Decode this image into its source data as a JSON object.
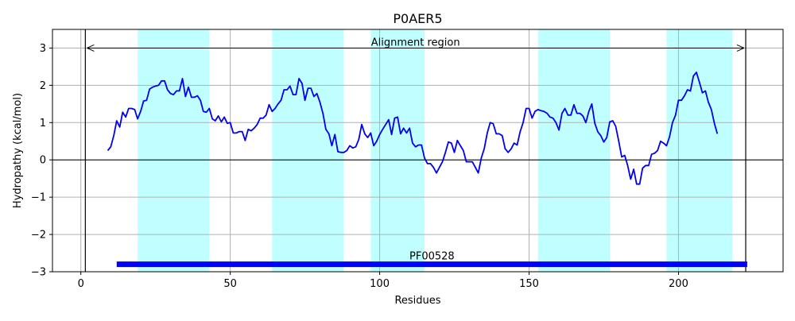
{
  "chart_data": {
    "type": "line",
    "title": "P0AER5",
    "xlabel": "Residues",
    "ylabel": "Hydropathy (kcal/mol)",
    "xlim": [
      -9.5,
      235
    ],
    "ylim": [
      -3,
      3.5
    ],
    "xticks": [
      0,
      50,
      100,
      150,
      200
    ],
    "yticks": [
      -3,
      -2,
      -1,
      0,
      1,
      2,
      3
    ],
    "xtick_labels": [
      "0",
      "50",
      "100",
      "150",
      "200"
    ],
    "ytick_labels": [
      "−3",
      "−2",
      "−1",
      "0",
      "1",
      "2",
      "3"
    ],
    "grid": true,
    "colors": {
      "line": "#0000ee",
      "span": "#c0ffff",
      "domain_bar": "#0000ff",
      "axis": "#000000",
      "grid": "#b0b0b0"
    },
    "highlight_spans": [
      [
        19,
        43
      ],
      [
        64,
        88
      ],
      [
        97,
        115
      ],
      [
        153,
        177
      ],
      [
        196,
        218
      ]
    ],
    "alignment_region": {
      "label": "Alignment region",
      "start": 1.5,
      "end": 222.5,
      "y": 3.0
    },
    "domain": {
      "label": "PF00528",
      "start": 12,
      "end": 223,
      "y": -2.8
    },
    "series": [
      {
        "x": [
          9,
          10,
          11,
          12,
          13,
          14,
          15,
          16,
          17,
          18,
          19,
          20,
          21,
          22,
          23,
          24,
          25,
          26,
          27,
          28,
          29,
          30,
          31,
          32,
          33,
          34,
          35,
          36,
          37,
          38,
          39,
          40,
          41,
          42,
          43,
          44,
          45,
          46,
          47,
          48,
          49,
          50,
          51,
          52,
          53,
          54,
          55,
          56,
          57,
          58,
          59,
          60,
          61,
          62,
          63,
          64,
          65,
          66,
          67,
          68,
          69,
          70,
          71,
          72,
          73,
          74,
          75,
          76,
          77,
          78,
          79,
          80,
          81,
          82,
          83,
          84,
          85,
          86,
          87,
          88,
          89,
          90,
          91,
          92,
          93,
          94,
          95,
          96,
          97,
          98,
          99,
          100,
          101,
          102,
          103,
          104,
          105,
          106,
          107,
          108,
          109,
          110,
          111,
          112,
          113,
          114,
          115,
          116,
          117,
          118,
          119,
          120,
          121,
          122,
          123,
          124,
          125,
          126,
          127,
          128,
          129,
          130,
          131,
          132,
          133,
          134,
          135,
          136,
          137,
          138,
          139,
          140,
          141,
          142,
          143,
          144,
          145,
          146,
          147,
          148,
          149,
          150,
          151,
          152,
          153,
          154,
          155,
          156,
          157,
          158,
          159,
          160,
          161,
          162,
          163,
          164,
          165,
          166,
          167,
          168,
          169,
          170,
          171,
          172,
          173,
          174,
          175,
          176,
          177,
          178,
          179,
          180,
          181,
          182,
          183,
          184,
          185,
          186,
          187,
          188,
          189,
          190,
          191,
          192,
          193,
          194,
          195,
          196,
          197,
          198,
          199,
          200,
          201,
          202,
          203,
          204,
          205,
          206,
          207,
          208,
          209,
          210,
          211,
          212,
          213
        ],
        "y": [
          0.25,
          0.35,
          0.65,
          1.05,
          0.88,
          1.28,
          1.15,
          1.38,
          1.38,
          1.35,
          1.1,
          1.3,
          1.58,
          1.6,
          1.9,
          1.95,
          1.98,
          2.0,
          2.12,
          2.12,
          1.88,
          1.78,
          1.75,
          1.85,
          1.85,
          2.18,
          1.7,
          1.95,
          1.68,
          1.68,
          1.72,
          1.6,
          1.3,
          1.28,
          1.38,
          1.1,
          1.05,
          1.18,
          1.02,
          1.15,
          0.98,
          1.0,
          0.72,
          0.72,
          0.76,
          0.76,
          0.52,
          0.82,
          0.78,
          0.85,
          0.95,
          1.12,
          1.12,
          1.2,
          1.48,
          1.3,
          1.38,
          1.5,
          1.6,
          1.88,
          1.88,
          1.98,
          1.75,
          1.75,
          2.18,
          2.05,
          1.6,
          1.92,
          1.92,
          1.7,
          1.78,
          1.55,
          1.25,
          0.82,
          0.7,
          0.38,
          0.68,
          0.22,
          0.2,
          0.2,
          0.25,
          0.38,
          0.32,
          0.35,
          0.55,
          0.95,
          0.7,
          0.6,
          0.72,
          0.38,
          0.5,
          0.68,
          0.82,
          0.95,
          1.08,
          0.68,
          1.12,
          1.15,
          0.7,
          0.85,
          0.72,
          0.85,
          0.45,
          0.35,
          0.4,
          0.4,
          0.05,
          -0.1,
          -0.1,
          -0.2,
          -0.35,
          -0.2,
          -0.05,
          0.2,
          0.48,
          0.45,
          0.2,
          0.52,
          0.38,
          0.25,
          -0.05,
          -0.05,
          -0.05,
          -0.2,
          -0.35,
          0.05,
          0.3,
          0.72,
          1.0,
          0.97,
          0.7,
          0.7,
          0.65,
          0.3,
          0.2,
          0.3,
          0.45,
          0.4,
          0.75,
          1.0,
          1.38,
          1.38,
          1.12,
          1.3,
          1.35,
          1.32,
          1.3,
          1.25,
          1.15,
          1.12,
          1.0,
          0.8,
          1.25,
          1.38,
          1.2,
          1.2,
          1.48,
          1.25,
          1.25,
          1.18,
          1.0,
          1.3,
          1.5,
          0.98,
          0.75,
          0.65,
          0.48,
          0.6,
          1.02,
          1.05,
          0.9,
          0.5,
          0.08,
          0.12,
          -0.15,
          -0.52,
          -0.25,
          -0.65,
          -0.65,
          -0.22,
          -0.15,
          -0.15,
          0.15,
          0.18,
          0.25,
          0.5,
          0.45,
          0.38,
          0.62,
          1.0,
          1.2,
          1.6,
          1.6,
          1.72,
          1.88,
          1.85,
          2.25,
          2.35,
          2.08,
          1.8,
          1.85,
          1.55,
          1.35,
          0.98,
          0.7
        ]
      }
    ]
  }
}
